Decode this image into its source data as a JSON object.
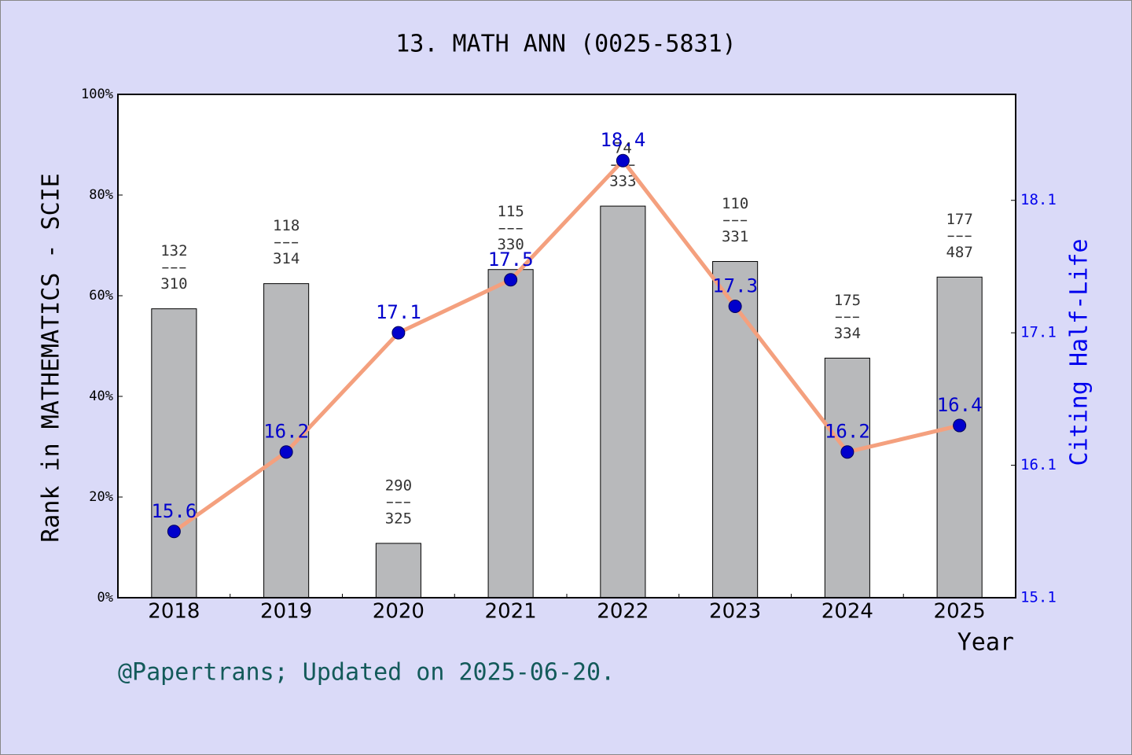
{
  "chart_data": {
    "type": "bar-line",
    "title": "13. MATH ANN (0025-5831)",
    "x_label": "Year",
    "y_label": "Rank in MATHEMATICS - SCIE",
    "y2_label": "Citing Half-Life",
    "footer": "@Papertrans; Updated on 2025-06-20.",
    "categories": [
      "2018",
      "2019",
      "2020",
      "2021",
      "2022",
      "2023",
      "2024",
      "2025"
    ],
    "series": [
      {
        "type": "bar",
        "color": "#b8b9bb",
        "values": [
          57.4,
          62.4,
          10.8,
          65.2,
          77.8,
          66.8,
          47.6,
          63.7
        ],
        "ranks": [
          132,
          118,
          290,
          115,
          74,
          110,
          175,
          177
        ],
        "totals": [
          310,
          314,
          325,
          330,
          333,
          331,
          334,
          487
        ]
      },
      {
        "type": "line",
        "axis": "y2",
        "color": "#f4a07e",
        "marker_color": "#0000cc",
        "values": [
          15.6,
          16.2,
          17.1,
          17.5,
          18.4,
          17.3,
          16.2,
          16.4
        ]
      }
    ],
    "ylim": [
      0,
      100
    ],
    "yticks": [
      {
        "value": 0,
        "label": "0%"
      },
      {
        "value": 20,
        "label": "20%"
      },
      {
        "value": 40,
        "label": "40%"
      },
      {
        "value": 60,
        "label": "60%"
      },
      {
        "value": 80,
        "label": "80%"
      },
      {
        "value": 100,
        "label": "100%"
      }
    ],
    "y2lim": [
      15.1,
      18.9
    ],
    "y2ticks": [
      {
        "value": 15.1,
        "label": "15.1"
      },
      {
        "value": 16.1,
        "label": "16.1"
      },
      {
        "value": 17.1,
        "label": "17.1"
      },
      {
        "value": 18.1,
        "label": "18.1"
      }
    ]
  }
}
